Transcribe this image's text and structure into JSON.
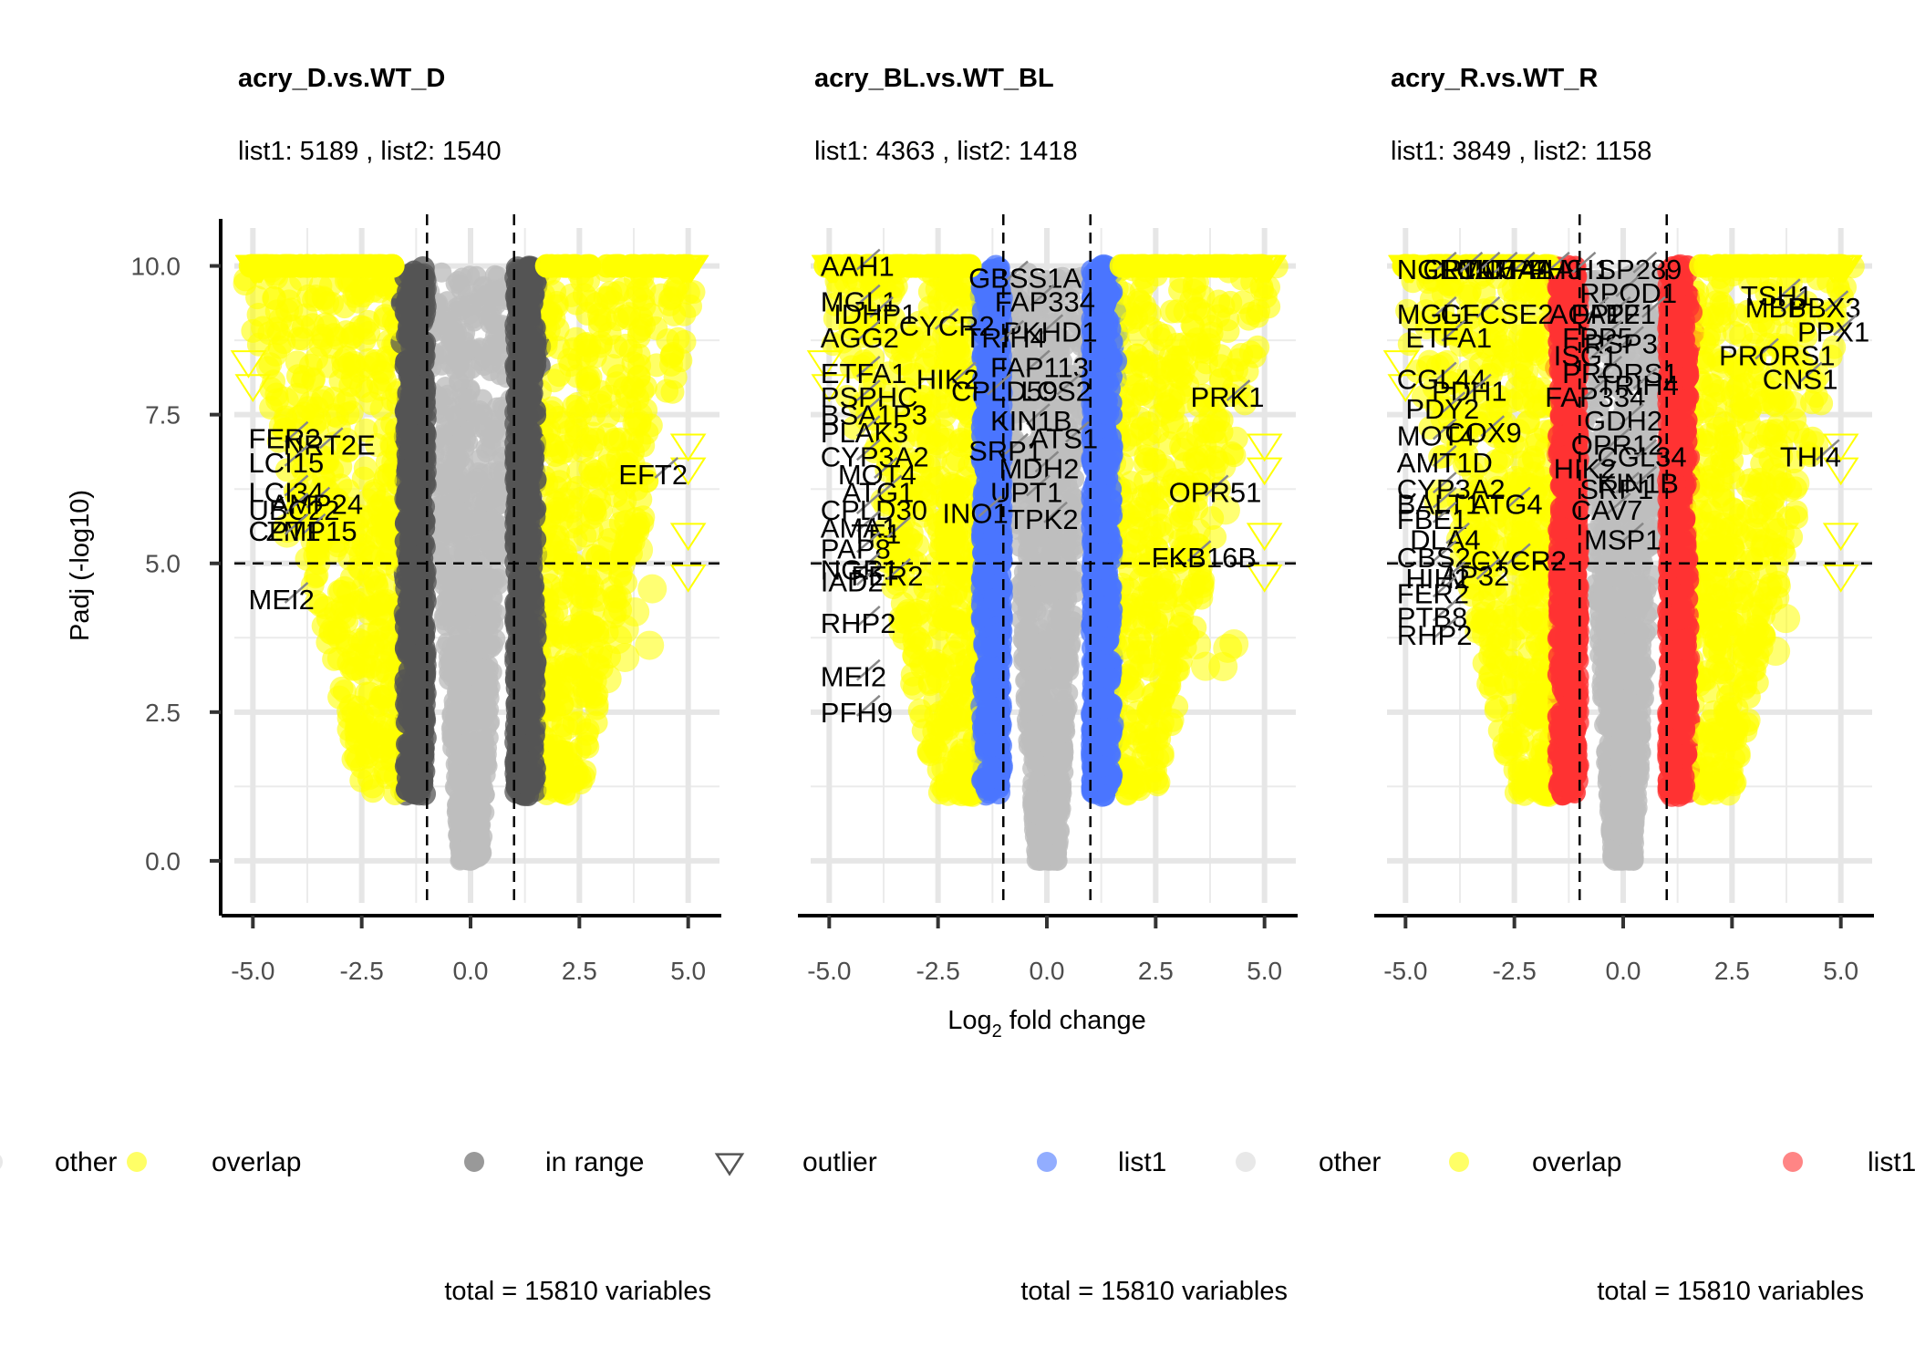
{
  "chart_data": {
    "type": "scatter",
    "x_label": "Log2 fold change",
    "y_label": "Padj (-log10)",
    "xlim": [
      -5.3,
      5.3
    ],
    "ylim": [
      -0.4,
      10.3
    ],
    "x_ticks": [
      "-5.0",
      "-2.5",
      "0.0",
      "2.5",
      "5.0"
    ],
    "y_ticks": [
      "0.0",
      "2.5",
      "5.0",
      "7.5",
      "10.0"
    ],
    "x_tick_values": [
      -5,
      -2.5,
      0,
      2.5,
      5
    ],
    "y_tick_values": [
      0,
      2.5,
      5,
      7.5,
      10
    ],
    "fc_threshold": 1,
    "padj_threshold": 5,
    "grid": true,
    "colors": {
      "overlap": "#ffff00",
      "other": "#bebebe",
      "in_range": "#555555",
      "list1_BL": "#4a76ff",
      "list1_R": "#ff3333",
      "outlier_stroke": "#ffff00"
    },
    "panels": [
      {
        "title": "acry_D.vs.WT_D",
        "subtitle": "list1: 5189 , list2:  1540",
        "caption": "total = 15810 variables",
        "list_color": "#555555",
        "labels": [
          {
            "text": "FER2",
            "x": -5.1,
            "y": 7.1
          },
          {
            "text": "NRT2E",
            "x": -4.3,
            "y": 7.0
          },
          {
            "text": "LCI15",
            "x": -5.1,
            "y": 6.7
          },
          {
            "text": "LCI34",
            "x": -5.1,
            "y": 6.2
          },
          {
            "text": "AMP24",
            "x": -4.6,
            "y": 6.0
          },
          {
            "text": "UBC22",
            "x": -5.1,
            "y": 5.9
          },
          {
            "text": "ZMP15",
            "x": -4.7,
            "y": 5.55
          },
          {
            "text": "CPT1",
            "x": -5.1,
            "y": 5.55
          },
          {
            "text": "MEI2",
            "x": -5.1,
            "y": 4.4
          },
          {
            "text": "EFT2",
            "x": 3.4,
            "y": 6.5
          }
        ]
      },
      {
        "title": "acry_BL.vs.WT_BL",
        "subtitle": "list1: 4363 , list2:  1418",
        "caption": "total = 15810 variables",
        "list_color": "#4a76ff",
        "labels": [
          {
            "text": "AAH1",
            "x": -5.2,
            "y": 10.0
          },
          {
            "text": "GBSS1A",
            "x": -1.8,
            "y": 9.8
          },
          {
            "text": "MGL1",
            "x": -5.2,
            "y": 9.4
          },
          {
            "text": "FAP334",
            "x": -1.2,
            "y": 9.4
          },
          {
            "text": "CYCR2",
            "x": -3.4,
            "y": 9.0
          },
          {
            "text": "IDHP1",
            "x": -4.9,
            "y": 9.2
          },
          {
            "text": "PKHD1",
            "x": -1.0,
            "y": 8.9
          },
          {
            "text": "AGG2",
            "x": -5.2,
            "y": 8.8
          },
          {
            "text": "TRIH4",
            "x": -1.9,
            "y": 8.8
          },
          {
            "text": "FAP113",
            "x": -1.3,
            "y": 8.3
          },
          {
            "text": "ETFA1",
            "x": -5.2,
            "y": 8.2
          },
          {
            "text": "HIK2",
            "x": -3.0,
            "y": 8.1
          },
          {
            "text": "LCS2",
            "x": -0.6,
            "y": 7.9
          },
          {
            "text": "PSPHC",
            "x": -5.2,
            "y": 7.8
          },
          {
            "text": "CPLD59",
            "x": -2.2,
            "y": 7.9
          },
          {
            "text": "BSA1P3",
            "x": -5.2,
            "y": 7.5
          },
          {
            "text": "KIN1B",
            "x": -1.3,
            "y": 7.4
          },
          {
            "text": "PLAK3",
            "x": -5.2,
            "y": 7.2
          },
          {
            "text": "ATS1",
            "x": -0.4,
            "y": 7.1
          },
          {
            "text": "SRP1",
            "x": -1.8,
            "y": 6.9
          },
          {
            "text": "CYP3A2",
            "x": -5.2,
            "y": 6.8
          },
          {
            "text": "MDH2",
            "x": -1.1,
            "y": 6.6
          },
          {
            "text": "MOT4",
            "x": -4.8,
            "y": 6.5
          },
          {
            "text": "UPT1",
            "x": -1.3,
            "y": 6.2
          },
          {
            "text": "ATG1",
            "x": -4.7,
            "y": 6.2
          },
          {
            "text": "CPLD30",
            "x": -5.2,
            "y": 5.9
          },
          {
            "text": "INO1",
            "x": -2.4,
            "y": 5.85
          },
          {
            "text": "TPK2",
            "x": -0.9,
            "y": 5.75
          },
          {
            "text": "AMA1",
            "x": -5.2,
            "y": 5.6
          },
          {
            "text": "TF1",
            "x": -4.5,
            "y": 5.5
          },
          {
            "text": "PAP8",
            "x": -5.2,
            "y": 5.25
          },
          {
            "text": "NGR1",
            "x": -5.2,
            "y": 4.9
          },
          {
            "text": "IAD2",
            "x": -5.2,
            "y": 4.7
          },
          {
            "text": "FER2",
            "x": -4.5,
            "y": 4.8
          },
          {
            "text": "RHP2",
            "x": -5.2,
            "y": 4.0
          },
          {
            "text": "MEI2",
            "x": -5.2,
            "y": 3.1
          },
          {
            "text": "PFH9",
            "x": -5.2,
            "y": 2.5
          },
          {
            "text": "PRK1",
            "x": 3.3,
            "y": 7.8
          },
          {
            "text": "OPR51",
            "x": 2.8,
            "y": 6.2
          },
          {
            "text": "FKB16B",
            "x": 2.4,
            "y": 5.1
          }
        ]
      },
      {
        "title": "acry_R.vs.WT_R",
        "subtitle": "list1: 3849 , list2:  1158",
        "caption": "total = 15810 variables",
        "list_color": "#ff3333",
        "labels": [
          {
            "text": "NGR1ATP4",
            "x": -5.2,
            "y": 9.95
          },
          {
            "text": "AMA1",
            "x": -3.4,
            "y": 9.95
          },
          {
            "text": "PFH9",
            "x": -2.6,
            "y": 9.95
          },
          {
            "text": "MOT4",
            "x": -3.8,
            "y": 9.95
          },
          {
            "text": "CPT1",
            "x": -4.6,
            "y": 9.95
          },
          {
            "text": "LCI15",
            "x": -4.2,
            "y": 9.95
          },
          {
            "text": "AAH1",
            "x": -2.0,
            "y": 9.95
          },
          {
            "text": "SP289",
            "x": -0.6,
            "y": 9.95
          },
          {
            "text": "RPOD1",
            "x": -1.0,
            "y": 9.55
          },
          {
            "text": "TSH1",
            "x": 2.7,
            "y": 9.5
          },
          {
            "text": "MGL1",
            "x": -5.2,
            "y": 9.2
          },
          {
            "text": "GFCSE2",
            "x": -4.2,
            "y": 9.2
          },
          {
            "text": "AQP2",
            "x": -1.7,
            "y": 9.2
          },
          {
            "text": "FAP2",
            "x": -1.2,
            "y": 9.2
          },
          {
            "text": "TF1",
            "x": -0.4,
            "y": 9.2
          },
          {
            "text": "MBB",
            "x": 2.8,
            "y": 9.3
          },
          {
            "text": "PBX3",
            "x": 3.8,
            "y": 9.3
          },
          {
            "text": "ETFA1",
            "x": -5.0,
            "y": 8.8
          },
          {
            "text": "FPP5",
            "x": -1.4,
            "y": 8.8
          },
          {
            "text": "RSP3",
            "x": -0.9,
            "y": 8.7
          },
          {
            "text": "PPX1",
            "x": 4.0,
            "y": 8.9
          },
          {
            "text": "PRORS1",
            "x": 2.2,
            "y": 8.5
          },
          {
            "text": "ISG1",
            "x": -1.6,
            "y": 8.5
          },
          {
            "text": "CNS1",
            "x": 3.2,
            "y": 8.1
          },
          {
            "text": "CGL44",
            "x": -5.2,
            "y": 8.1
          },
          {
            "text": "PDH1",
            "x": -4.4,
            "y": 7.9
          },
          {
            "text": "PRORS1",
            "x": -1.4,
            "y": 8.2
          },
          {
            "text": "FAP334",
            "x": -1.8,
            "y": 7.8
          },
          {
            "text": "PDY2",
            "x": -5.0,
            "y": 7.6
          },
          {
            "text": "TRIH4",
            "x": -0.6,
            "y": 8.0
          },
          {
            "text": "GDH2",
            "x": -0.9,
            "y": 7.4
          },
          {
            "text": "COX9",
            "x": -4.1,
            "y": 7.2
          },
          {
            "text": "MOT4",
            "x": -5.2,
            "y": 7.15
          },
          {
            "text": "OPR12",
            "x": -1.2,
            "y": 7.0
          },
          {
            "text": "CGL34",
            "x": -0.6,
            "y": 6.8
          },
          {
            "text": "THI4",
            "x": 3.6,
            "y": 6.8
          },
          {
            "text": "AMT1D",
            "x": -5.2,
            "y": 6.7
          },
          {
            "text": "HIK2",
            "x": -1.6,
            "y": 6.6
          },
          {
            "text": "CYP3A2",
            "x": -5.2,
            "y": 6.25
          },
          {
            "text": "SRP1",
            "x": -1.0,
            "y": 6.25
          },
          {
            "text": "KIN1B",
            "x": -0.6,
            "y": 6.35
          },
          {
            "text": "BALT1",
            "x": -5.2,
            "y": 6.0
          },
          {
            "text": "ATG4",
            "x": -3.5,
            "y": 6.0
          },
          {
            "text": "CAV7",
            "x": -1.2,
            "y": 5.9
          },
          {
            "text": "FBE1",
            "x": -5.2,
            "y": 5.75
          },
          {
            "text": "DLA4",
            "x": -4.9,
            "y": 5.4
          },
          {
            "text": "MSP1",
            "x": -0.9,
            "y": 5.4
          },
          {
            "text": "CBS2",
            "x": -5.2,
            "y": 5.1
          },
          {
            "text": "CYCR2",
            "x": -3.5,
            "y": 5.05
          },
          {
            "text": "AP32",
            "x": -4.2,
            "y": 4.8
          },
          {
            "text": "HIH2",
            "x": -5.0,
            "y": 4.75
          },
          {
            "text": "FER2",
            "x": -5.2,
            "y": 4.5
          },
          {
            "text": "PTB8",
            "x": -5.2,
            "y": 4.1
          },
          {
            "text": "RHP2",
            "x": -5.2,
            "y": 3.8
          }
        ]
      }
    ]
  },
  "x_label_main": "Log",
  "x_label_sub": "2",
  "x_label_rest": " fold change",
  "y_label": "Padj (-log10)",
  "legend": {
    "items": [
      {
        "label": "other",
        "color": "#d9d9d9",
        "shape": "circle"
      },
      {
        "label": "overlap",
        "color": "#ffff00",
        "shape": "circle"
      },
      {
        "label": "in range",
        "color": "#555555",
        "shape": "circle"
      },
      {
        "label": "outlier",
        "color": "#555555",
        "shape": "triangle"
      },
      {
        "label": "list1",
        "color": "#4a76ff",
        "shape": "circle"
      },
      {
        "label": "other",
        "color": "#d9d9d9",
        "shape": "circle"
      },
      {
        "label": "overlap",
        "color": "#ffff00",
        "shape": "circle"
      },
      {
        "label": "list1",
        "color": "#ff3333",
        "shape": "circle"
      }
    ]
  }
}
